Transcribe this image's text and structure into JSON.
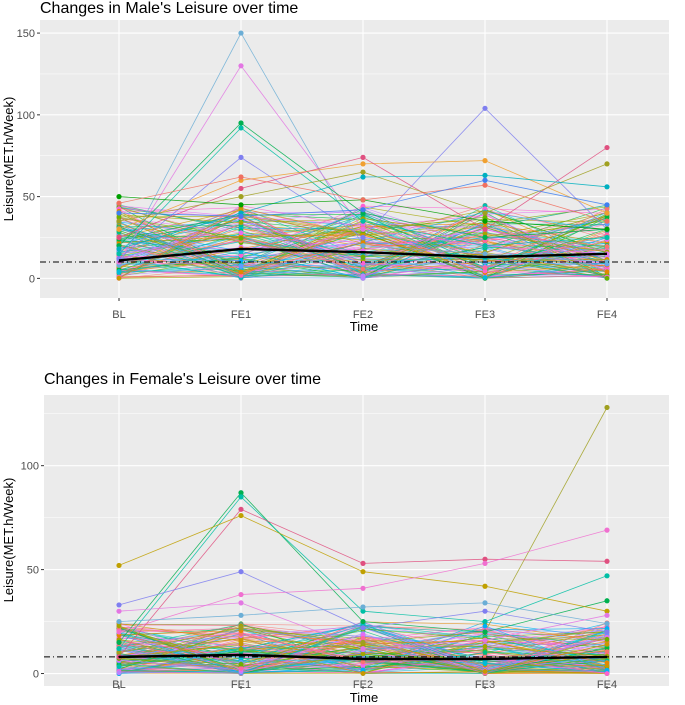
{
  "chart_data": [
    {
      "type": "line",
      "title": "Changes in Male's Leisure over time",
      "xlabel": "Time",
      "ylabel": "Leisure(MET.h/Week)",
      "categories": [
        "BL",
        "FE1",
        "FE2",
        "FE3",
        "FE4"
      ],
      "ylim": [
        -12,
        158
      ],
      "yticks": [
        0,
        50,
        100,
        150
      ],
      "reference_line": 10,
      "mean_series": [
        11,
        18,
        16,
        13,
        15
      ],
      "highlight_series": [
        {
          "color": "#6baed6",
          "values": [
            8,
            150,
            20,
            15,
            10
          ]
        },
        {
          "color": "#e377e3",
          "values": [
            10,
            130,
            30,
            20,
            15
          ]
        },
        {
          "color": "#00b050",
          "values": [
            20,
            95,
            40,
            25,
            30
          ]
        },
        {
          "color": "#00bfa5",
          "values": [
            15,
            92,
            35,
            20,
            25
          ]
        },
        {
          "color": "#7f7ff0",
          "values": [
            12,
            74,
            25,
            104,
            30
          ]
        },
        {
          "color": "#f0a030",
          "values": [
            30,
            60,
            70,
            72,
            40
          ]
        },
        {
          "color": "#e05080",
          "values": [
            25,
            55,
            74,
            30,
            80
          ]
        },
        {
          "color": "#a0a020",
          "values": [
            35,
            50,
            65,
            40,
            70
          ]
        },
        {
          "color": "#00b0c0",
          "values": [
            18,
            40,
            62,
            63,
            56
          ]
        },
        {
          "color": "#00a000",
          "values": [
            50,
            45,
            48,
            35,
            30
          ]
        },
        {
          "color": "#f07060",
          "values": [
            46,
            62,
            48,
            57,
            35
          ]
        },
        {
          "color": "#4080f0",
          "values": [
            40,
            38,
            42,
            60,
            45
          ]
        }
      ],
      "n_background_lines": 140,
      "background_value_range": [
        0,
        45
      ]
    },
    {
      "type": "line",
      "title": "Changes in Female's Leisure over time",
      "xlabel": "Time",
      "ylabel": "Leisure(MET.h/Week)",
      "categories": [
        "BL",
        "FE1",
        "FE2",
        "FE3",
        "FE4"
      ],
      "ylim": [
        -6,
        134
      ],
      "yticks": [
        0,
        50,
        100
      ],
      "reference_line": 8,
      "mean_series": [
        8,
        9,
        7,
        7,
        8
      ],
      "highlight_series": [
        {
          "color": "#a0a020",
          "values": [
            10,
            22,
            15,
            20,
            128
          ]
        },
        {
          "color": "#00b050",
          "values": [
            15,
            87,
            25,
            20,
            35
          ]
        },
        {
          "color": "#00bfa5",
          "values": [
            12,
            85,
            30,
            25,
            47
          ]
        },
        {
          "color": "#e05080",
          "values": [
            8,
            79,
            53,
            55,
            54
          ]
        },
        {
          "color": "#c0a000",
          "values": [
            52,
            76,
            49,
            42,
            30
          ]
        },
        {
          "color": "#7f7ff0",
          "values": [
            33,
            49,
            22,
            30,
            20
          ]
        },
        {
          "color": "#f070d0",
          "values": [
            20,
            38,
            41,
            53,
            69
          ]
        },
        {
          "color": "#6baed6",
          "values": [
            25,
            28,
            32,
            34,
            24
          ]
        },
        {
          "color": "#e377e3",
          "values": [
            30,
            34,
            12,
            16,
            28
          ]
        }
      ],
      "n_background_lines": 140,
      "background_value_range": [
        0,
        25
      ]
    }
  ]
}
